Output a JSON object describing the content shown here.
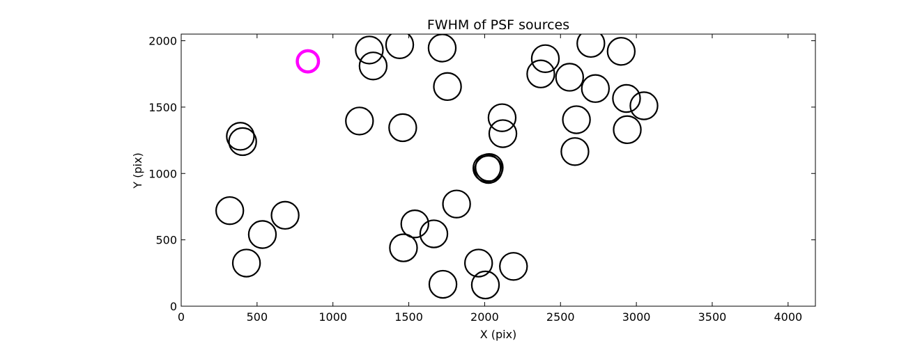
{
  "chart_data": {
    "type": "scatter",
    "title": "FWHM of PSF sources",
    "xlabel": "X (pix)",
    "ylabel": "Y (pix)",
    "xlim": [
      0,
      4180
    ],
    "ylim": [
      0,
      2050
    ],
    "xticks": [
      "0",
      "500",
      "1000",
      "1500",
      "2000",
      "2500",
      "3000",
      "3500",
      "4000"
    ],
    "yticks": [
      "0",
      "500",
      "1000",
      "1500",
      "2000"
    ],
    "grid": false,
    "legend": "none",
    "colors": {
      "default": "#000000",
      "highlight": "#ff00ff"
    },
    "sources": [
      {
        "x": 835,
        "y": 1845,
        "fwhm": 140,
        "highlight": true
      },
      {
        "x": 1240,
        "y": 1930,
        "fwhm": 180
      },
      {
        "x": 1265,
        "y": 1810,
        "fwhm": 180
      },
      {
        "x": 1440,
        "y": 1970,
        "fwhm": 180
      },
      {
        "x": 1720,
        "y": 1945,
        "fwhm": 180
      },
      {
        "x": 1755,
        "y": 1655,
        "fwhm": 180
      },
      {
        "x": 1175,
        "y": 1395,
        "fwhm": 180
      },
      {
        "x": 1460,
        "y": 1345,
        "fwhm": 180
      },
      {
        "x": 2115,
        "y": 1420,
        "fwhm": 180
      },
      {
        "x": 2120,
        "y": 1300,
        "fwhm": 180
      },
      {
        "x": 2030,
        "y": 1045,
        "fwhm": 180
      },
      {
        "x": 2015,
        "y": 1040,
        "fwhm": 180
      },
      {
        "x": 2025,
        "y": 1030,
        "fwhm": 180
      },
      {
        "x": 390,
        "y": 1280,
        "fwhm": 180
      },
      {
        "x": 405,
        "y": 1240,
        "fwhm": 180
      },
      {
        "x": 2400,
        "y": 1865,
        "fwhm": 180
      },
      {
        "x": 2370,
        "y": 1750,
        "fwhm": 180
      },
      {
        "x": 2560,
        "y": 1725,
        "fwhm": 180
      },
      {
        "x": 2700,
        "y": 1980,
        "fwhm": 180
      },
      {
        "x": 2730,
        "y": 1640,
        "fwhm": 180
      },
      {
        "x": 2900,
        "y": 1920,
        "fwhm": 180
      },
      {
        "x": 2935,
        "y": 1565,
        "fwhm": 180
      },
      {
        "x": 3050,
        "y": 1510,
        "fwhm": 180
      },
      {
        "x": 2605,
        "y": 1405,
        "fwhm": 180
      },
      {
        "x": 2595,
        "y": 1165,
        "fwhm": 180
      },
      {
        "x": 2940,
        "y": 1330,
        "fwhm": 180
      },
      {
        "x": 320,
        "y": 720,
        "fwhm": 180
      },
      {
        "x": 685,
        "y": 685,
        "fwhm": 180
      },
      {
        "x": 535,
        "y": 540,
        "fwhm": 180
      },
      {
        "x": 430,
        "y": 325,
        "fwhm": 180
      },
      {
        "x": 1815,
        "y": 770,
        "fwhm": 180
      },
      {
        "x": 1540,
        "y": 620,
        "fwhm": 180
      },
      {
        "x": 1665,
        "y": 545,
        "fwhm": 180
      },
      {
        "x": 1465,
        "y": 440,
        "fwhm": 180
      },
      {
        "x": 1960,
        "y": 325,
        "fwhm": 180
      },
      {
        "x": 2190,
        "y": 300,
        "fwhm": 180
      },
      {
        "x": 1725,
        "y": 165,
        "fwhm": 180
      },
      {
        "x": 2005,
        "y": 160,
        "fwhm": 180
      }
    ]
  }
}
